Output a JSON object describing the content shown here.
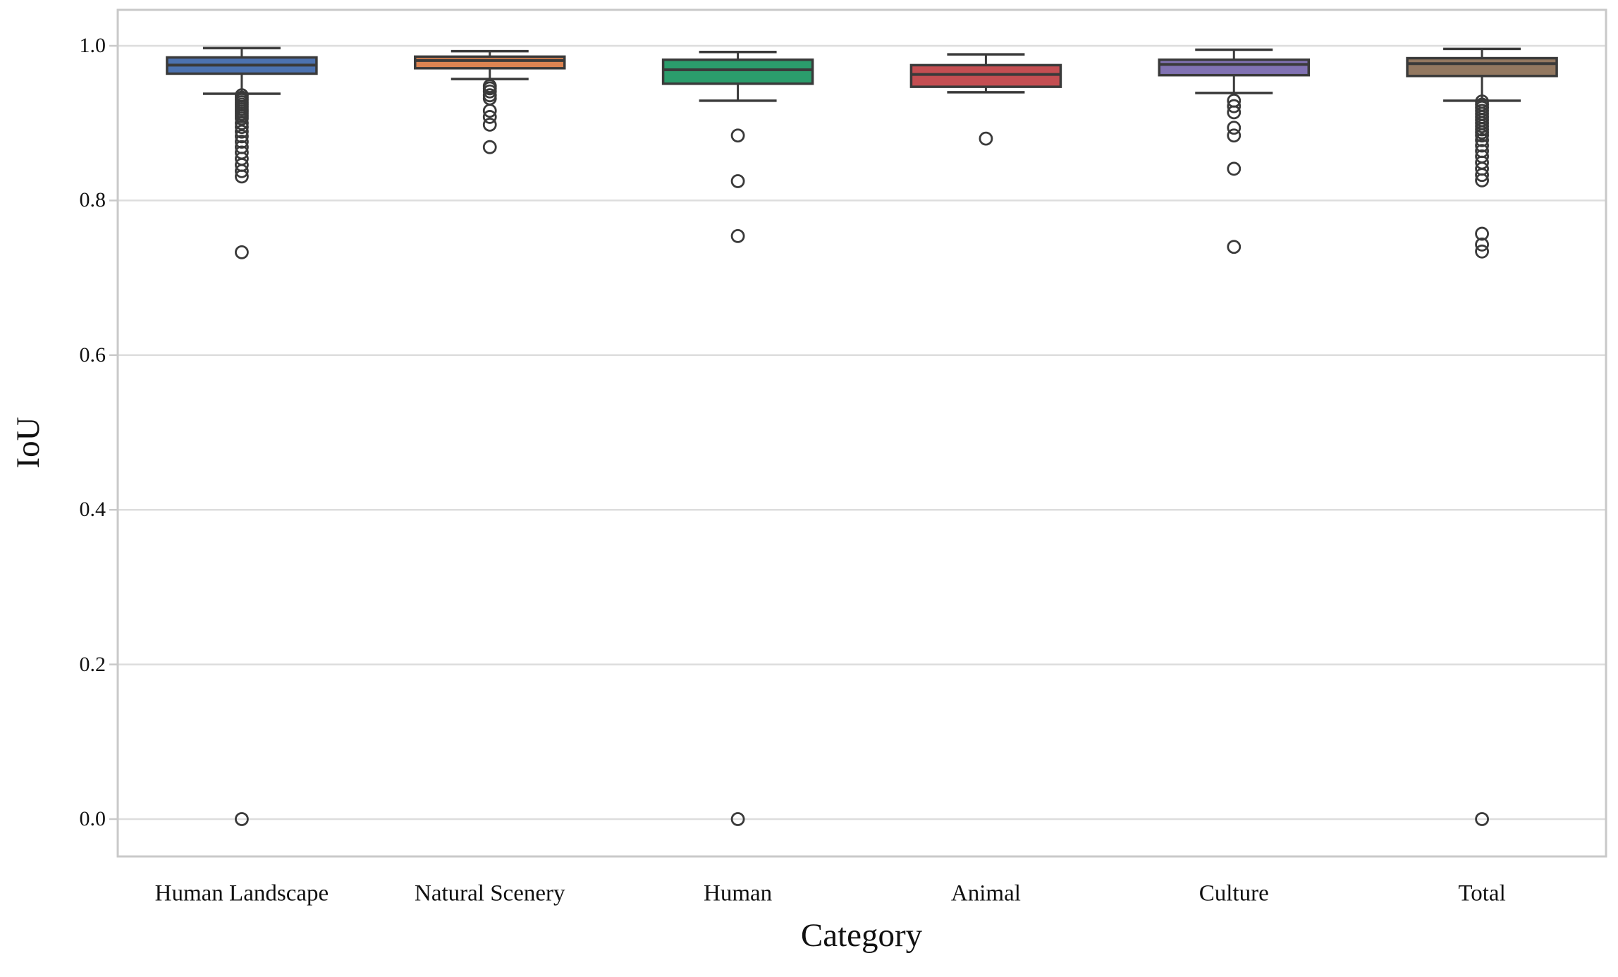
{
  "figure": {
    "background": "#ffffff",
    "spine_color": "#c9c9c9",
    "grid_color": "#dddddd",
    "box_edge_color": "#3a3a3a",
    "text_color": "#111111"
  },
  "chart_data": {
    "type": "box",
    "title": "",
    "xlabel": "Category",
    "ylabel": "IoU",
    "ylim": [
      -0.05,
      1.05
    ],
    "yticks": [
      0.0,
      0.2,
      0.4,
      0.6,
      0.8,
      1.0
    ],
    "ytick_labels": [
      "0.0",
      "0.2",
      "0.4",
      "0.6",
      "0.8",
      "1.0"
    ],
    "grid": "horizontal",
    "legend": "none",
    "categories": [
      "Human Landscape",
      "Natural Scenery",
      "Human",
      "Animal",
      "Culture",
      "Total"
    ],
    "series": [
      {
        "name": "Human Landscape",
        "color": "#4C72B0",
        "whisker_low": 0.938,
        "q1": 0.964,
        "median": 0.975,
        "q3": 0.985,
        "whisker_high": 0.997,
        "outliers": [
          0.936,
          0.933,
          0.93,
          0.927,
          0.924,
          0.921,
          0.918,
          0.915,
          0.912,
          0.909,
          0.906,
          0.9,
          0.895,
          0.889,
          0.883,
          0.876,
          0.869,
          0.862,
          0.854,
          0.846,
          0.838,
          0.831,
          0.733,
          0.0
        ]
      },
      {
        "name": "Natural Scenery",
        "color": "#DD8452",
        "whisker_low": 0.957,
        "q1": 0.971,
        "median": 0.981,
        "q3": 0.986,
        "whisker_high": 0.993,
        "outliers": [
          0.948,
          0.945,
          0.941,
          0.936,
          0.932,
          0.916,
          0.908,
          0.898,
          0.869
        ]
      },
      {
        "name": "Human",
        "color": "#2B9D6C",
        "whisker_low": 0.929,
        "q1": 0.951,
        "median": 0.969,
        "q3": 0.982,
        "whisker_high": 0.992,
        "outliers": [
          0.884,
          0.825,
          0.754,
          0.0
        ]
      },
      {
        "name": "Animal",
        "color": "#C44E52",
        "whisker_low": 0.94,
        "q1": 0.947,
        "median": 0.963,
        "q3": 0.975,
        "whisker_high": 0.989,
        "outliers": [
          0.88
        ]
      },
      {
        "name": "Culture",
        "color": "#8172B3",
        "whisker_low": 0.939,
        "q1": 0.962,
        "median": 0.976,
        "q3": 0.982,
        "whisker_high": 0.995,
        "outliers": [
          0.929,
          0.922,
          0.914,
          0.894,
          0.884,
          0.841,
          0.74
        ]
      },
      {
        "name": "Total",
        "color": "#937860",
        "whisker_low": 0.929,
        "q1": 0.961,
        "median": 0.977,
        "q3": 0.984,
        "whisker_high": 0.996,
        "outliers": [
          0.928,
          0.924,
          0.92,
          0.916,
          0.912,
          0.908,
          0.904,
          0.9,
          0.896,
          0.892,
          0.888,
          0.884,
          0.878,
          0.871,
          0.864,
          0.857,
          0.849,
          0.841,
          0.833,
          0.826,
          0.757,
          0.743,
          0.734,
          0.0
        ]
      }
    ]
  }
}
